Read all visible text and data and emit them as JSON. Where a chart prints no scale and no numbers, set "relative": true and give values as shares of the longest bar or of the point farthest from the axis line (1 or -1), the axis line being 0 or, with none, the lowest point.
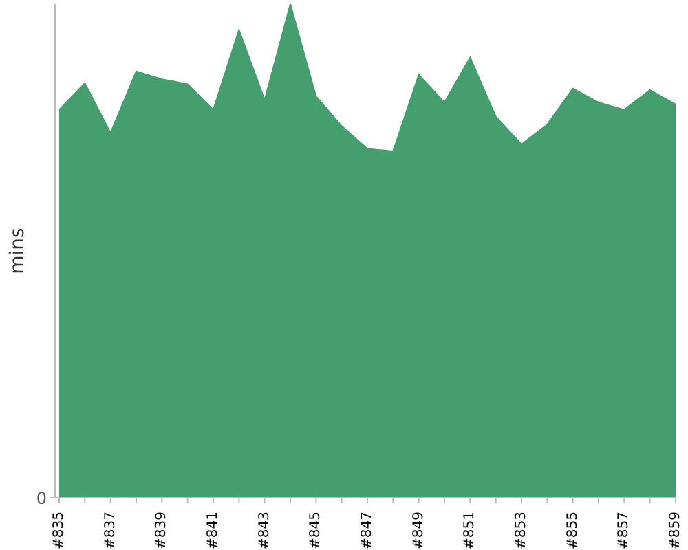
{
  "chart_data": {
    "type": "area",
    "ylabel": "mins",
    "categories": [
      "#835",
      null,
      "#837",
      null,
      "#839",
      null,
      "#841",
      null,
      "#843",
      null,
      "#845",
      null,
      "#847",
      null,
      "#849",
      null,
      "#851",
      null,
      "#853",
      null,
      "#855",
      null,
      "#857",
      null,
      "#859"
    ],
    "values": [
      0.786,
      0.84,
      0.739,
      0.864,
      0.848,
      0.838,
      0.786,
      0.948,
      0.806,
      1,
      0.813,
      0.753,
      0.707,
      0.702,
      0.857,
      0.801,
      0.892,
      0.772,
      0.716,
      0.756,
      0.829,
      0.801,
      0.786,
      0.826,
      0.797
    ],
    "color": "#459e6e",
    "relative": true,
    "annotations": [
      "0"
    ]
  }
}
